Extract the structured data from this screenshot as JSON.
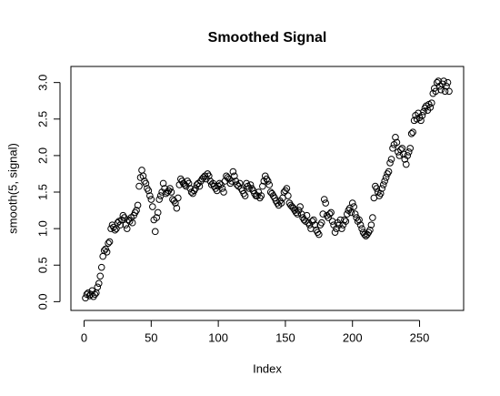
{
  "chart_data": {
    "type": "scatter",
    "title": "Smoothed Signal",
    "x_label": "Index",
    "y_label": "smooth(5, signal)",
    "x": [
      1,
      2,
      3,
      4,
      5,
      6,
      7,
      8,
      9,
      10,
      11,
      12,
      13,
      14,
      15,
      16,
      17,
      18,
      19,
      20,
      21,
      22,
      23,
      24,
      25,
      26,
      27,
      28,
      29,
      30,
      31,
      32,
      33,
      34,
      35,
      36,
      37,
      38,
      39,
      40,
      41,
      42,
      43,
      44,
      45,
      46,
      47,
      48,
      49,
      50,
      51,
      52,
      53,
      54,
      55,
      56,
      57,
      58,
      59,
      60,
      61,
      62,
      63,
      64,
      65,
      66,
      67,
      68,
      69,
      70,
      71,
      72,
      73,
      74,
      75,
      76,
      77,
      78,
      79,
      80,
      81,
      82,
      83,
      84,
      85,
      86,
      87,
      88,
      89,
      90,
      91,
      92,
      93,
      94,
      95,
      96,
      97,
      98,
      99,
      100,
      101,
      102,
      103,
      104,
      105,
      106,
      107,
      108,
      109,
      110,
      111,
      112,
      113,
      114,
      115,
      116,
      117,
      118,
      119,
      120,
      121,
      122,
      123,
      124,
      125,
      126,
      127,
      128,
      129,
      130,
      131,
      132,
      133,
      134,
      135,
      136,
      137,
      138,
      139,
      140,
      141,
      142,
      143,
      144,
      145,
      146,
      147,
      148,
      149,
      150,
      151,
      152,
      153,
      154,
      155,
      156,
      157,
      158,
      159,
      160,
      161,
      162,
      163,
      164,
      165,
      166,
      167,
      168,
      169,
      170,
      171,
      172,
      173,
      174,
      175,
      176,
      177,
      178,
      179,
      180,
      181,
      182,
      183,
      184,
      185,
      186,
      187,
      188,
      189,
      190,
      191,
      192,
      193,
      194,
      195,
      196,
      197,
      198,
      199,
      200,
      201,
      202,
      203,
      204,
      205,
      206,
      207,
      208,
      209,
      210,
      211,
      212,
      213,
      214,
      215,
      216,
      217,
      218,
      219,
      220,
      221,
      222,
      223,
      224,
      225,
      226,
      227,
      228,
      229,
      230,
      231,
      232,
      233,
      234,
      235,
      236,
      237,
      238,
      239,
      240,
      241,
      242,
      243,
      244,
      245,
      246,
      247,
      248,
      249,
      250,
      251,
      252,
      253,
      254,
      255,
      256,
      257,
      258,
      259,
      260,
      261,
      262,
      263,
      264,
      265,
      266,
      267,
      268,
      269,
      270,
      271,
      272
    ],
    "values": [
      0.05,
      0.1,
      0.12,
      0.08,
      0.1,
      0.15,
      0.07,
      0.1,
      0.12,
      0.2,
      0.25,
      0.35,
      0.47,
      0.62,
      0.7,
      0.72,
      0.68,
      0.8,
      0.82,
      1.0,
      1.05,
      1.02,
      0.98,
      1.0,
      1.08,
      1.1,
      1.05,
      1.12,
      1.18,
      1.15,
      1.05,
      1.0,
      1.12,
      1.1,
      1.15,
      1.08,
      1.18,
      1.22,
      1.25,
      1.32,
      1.58,
      1.7,
      1.8,
      1.72,
      1.65,
      1.62,
      1.55,
      1.52,
      1.45,
      1.4,
      1.3,
      1.12,
      0.96,
      1.15,
      1.22,
      1.4,
      1.45,
      1.5,
      1.62,
      1.55,
      1.48,
      1.5,
      1.52,
      1.55,
      1.5,
      1.4,
      1.38,
      1.35,
      1.28,
      1.42,
      1.6,
      1.68,
      1.65,
      1.62,
      1.6,
      1.58,
      1.65,
      1.62,
      1.55,
      1.5,
      1.48,
      1.52,
      1.55,
      1.6,
      1.62,
      1.58,
      1.65,
      1.68,
      1.7,
      1.72,
      1.68,
      1.75,
      1.72,
      1.65,
      1.6,
      1.62,
      1.58,
      1.55,
      1.52,
      1.58,
      1.62,
      1.6,
      1.55,
      1.5,
      1.65,
      1.72,
      1.7,
      1.68,
      1.62,
      1.65,
      1.78,
      1.72,
      1.65,
      1.6,
      1.58,
      1.62,
      1.55,
      1.52,
      1.48,
      1.45,
      1.62,
      1.58,
      1.55,
      1.6,
      1.55,
      1.52,
      1.48,
      1.45,
      1.45,
      1.5,
      1.42,
      1.45,
      1.58,
      1.65,
      1.72,
      1.68,
      1.65,
      1.6,
      1.5,
      1.48,
      1.45,
      1.42,
      1.38,
      1.35,
      1.32,
      1.38,
      1.35,
      1.42,
      1.5,
      1.52,
      1.55,
      1.45,
      1.35,
      1.32,
      1.3,
      1.28,
      1.25,
      1.22,
      1.2,
      1.25,
      1.3,
      1.2,
      1.15,
      1.12,
      1.1,
      1.18,
      1.08,
      1.05,
      1.0,
      1.1,
      1.12,
      1.05,
      0.98,
      0.95,
      0.92,
      1.05,
      1.08,
      1.2,
      1.4,
      1.35,
      1.18,
      1.15,
      1.2,
      1.22,
      1.1,
      1.05,
      0.95,
      1.0,
      1.08,
      1.05,
      1.12,
      1.0,
      1.05,
      1.12,
      1.1,
      1.2,
      1.25,
      1.28,
      1.22,
      1.35,
      1.3,
      1.2,
      1.15,
      1.1,
      1.12,
      1.05,
      1.0,
      0.95,
      0.92,
      0.9,
      0.92,
      0.95,
      0.98,
      1.05,
      1.15,
      1.42,
      1.58,
      1.55,
      1.5,
      1.45,
      1.48,
      1.55,
      1.6,
      1.65,
      1.7,
      1.75,
      1.78,
      1.9,
      1.95,
      2.1,
      2.15,
      2.25,
      2.18,
      2.05,
      2.0,
      2.08,
      2.1,
      2.02,
      1.95,
      1.88,
      2.0,
      2.05,
      2.1,
      2.3,
      2.32,
      2.48,
      2.55,
      2.5,
      2.58,
      2.52,
      2.48,
      2.55,
      2.6,
      2.65,
      2.68,
      2.62,
      2.7,
      2.66,
      2.72,
      2.85,
      2.92,
      2.88,
      3.0,
      3.02,
      2.95,
      2.9,
      2.98,
      3.02,
      2.88,
      2.95,
      3.0,
      2.88
    ],
    "color": "#000000",
    "xlim": [
      -9.84,
      282.84
    ],
    "xticks": [
      0,
      50,
      100,
      150,
      200,
      250
    ],
    "ylim": [
      -0.12,
      3.22
    ],
    "yticks": [
      {
        "value": 0,
        "label": "0.0"
      },
      0.5,
      {
        "value": 1,
        "label": "1.0"
      },
      1.5,
      {
        "value": 2,
        "label": "2.0"
      },
      2.5,
      {
        "value": 3,
        "label": "3.0"
      }
    ]
  }
}
